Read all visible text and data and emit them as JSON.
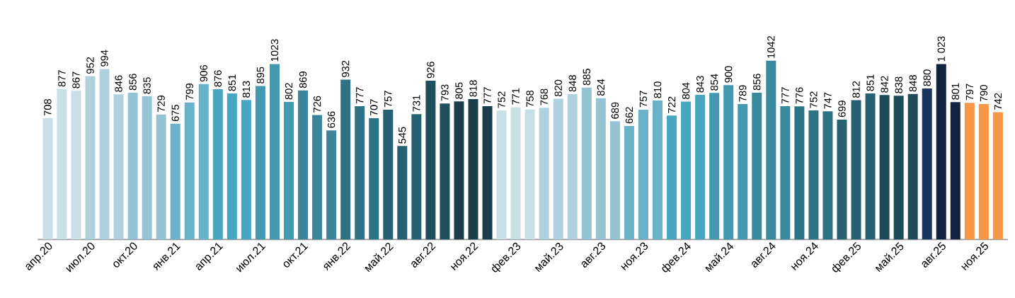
{
  "chart_data": {
    "type": "bar",
    "categories": [
      "апр.20",
      null,
      null,
      "июл.20",
      null,
      null,
      "окт.20",
      null,
      null,
      "янв.21",
      null,
      null,
      "апр.21",
      null,
      null,
      "июл.21",
      null,
      null,
      "окт.21",
      null,
      null,
      "янв.22",
      null,
      null,
      "май.22",
      null,
      null,
      "авг.22",
      null,
      null,
      "ноя.22",
      null,
      null,
      "фев.23",
      null,
      null,
      "май.23",
      null,
      null,
      "авг.23",
      null,
      null,
      "ноя.23",
      null,
      null,
      "фев.24",
      null,
      null,
      "май.24",
      null,
      null,
      "авг.24",
      null,
      null,
      "ноя.24",
      null,
      null,
      "фев.25",
      null,
      null,
      "май.25",
      null,
      null,
      "авг.25",
      null,
      null,
      "ноя.25",
      null
    ],
    "values": [
      708,
      877,
      867,
      952,
      994,
      846,
      856,
      835,
      729,
      675,
      799,
      906,
      876,
      851,
      813,
      895,
      1023,
      802,
      869,
      726,
      636,
      932,
      777,
      707,
      757,
      545,
      731,
      926,
      793,
      805,
      818,
      777,
      752,
      771,
      758,
      768,
      820,
      848,
      885,
      824,
      689,
      662,
      757,
      810,
      722,
      804,
      843,
      854,
      900,
      789,
      856,
      1042,
      777,
      776,
      752,
      747,
      699,
      812,
      851,
      842,
      838,
      848,
      880,
      1023,
      801,
      797,
      790,
      742
    ],
    "value_labels": [
      "708",
      "877",
      "867",
      "952",
      "994",
      "846",
      "856",
      "835",
      "729",
      "675",
      "799",
      "906",
      "876",
      "851",
      "813",
      "895",
      "1023",
      "802",
      "869",
      "726",
      "636",
      "932",
      "777",
      "707",
      "757",
      "545",
      "731",
      "926",
      "793",
      "805",
      "818",
      "777",
      "752",
      "771",
      "758",
      "768",
      "820",
      "848",
      "885",
      "824",
      "689",
      "662",
      "757",
      "810",
      "722",
      "804",
      "843",
      "854",
      "900",
      "789",
      "856",
      "1042",
      "777",
      "776",
      "752",
      "747",
      "699",
      "812",
      "851",
      "842",
      "838",
      "848",
      "880",
      "1 023",
      "801",
      "797",
      "790",
      "742"
    ],
    "colors": [
      "#c8dfe6",
      "#c8dfe6",
      "#c8dfe6",
      "#afd1dd",
      "#afd1dd",
      "#afd1dd",
      "#94c4d4",
      "#94c4d4",
      "#94c4d4",
      "#68b3c9",
      "#68b3c9",
      "#68b3c9",
      "#48a7c0",
      "#48a7c0",
      "#48a7c0",
      "#4299b0",
      "#4299b0",
      "#4299b0",
      "#3a8599",
      "#3a8599",
      "#3a8599",
      "#2b7385",
      "#2b7385",
      "#2b7385",
      "#256172",
      "#256172",
      "#256172",
      "#1f4f5d",
      "#1f4f5d",
      "#1c3e4a",
      "#1c3e4a",
      "#1c3e4a",
      "#c8dfe6",
      "#c8dfe6",
      "#c8dfe6",
      "#afd1dd",
      "#afd1dd",
      "#afd1dd",
      "#94c4d4",
      "#94c4d4",
      "#94c4d4",
      "#68b3c9",
      "#68b3c9",
      "#68b3c9",
      "#48a7c0",
      "#48a7c0",
      "#48a7c0",
      "#4299b0",
      "#4299b0",
      "#4299b0",
      "#3a8a9e",
      "#3a8a9e",
      "#3a8a9e",
      "#2b7385",
      "#2b7385",
      "#2b7385",
      "#256172",
      "#256172",
      "#256172",
      "#1e4b59",
      "#1e4b59",
      "#1e4b59",
      "#1a365d",
      "#12233f",
      "#12233f",
      "#f79646",
      "#f79646",
      "#f79646"
    ],
    "tick_labels": "x"
  }
}
